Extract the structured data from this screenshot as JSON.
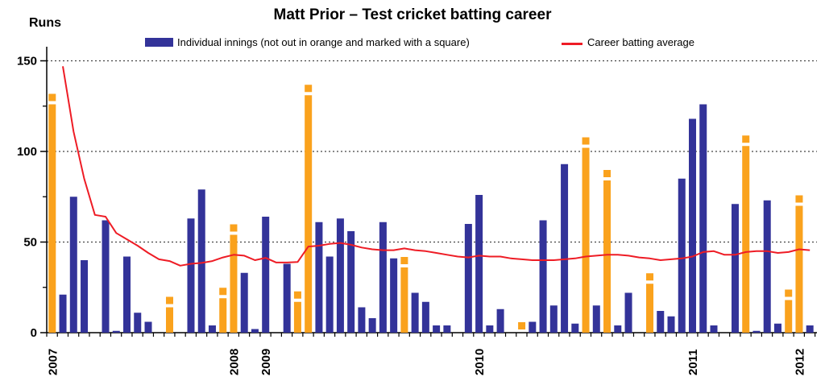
{
  "title": "Matt Prior – Test cricket batting career",
  "y_axis_title": "Runs",
  "legend": {
    "innings_label": "Individual innings (not out in orange and marked with a square)",
    "average_label": "Career batting average"
  },
  "colors": {
    "bar_blue": "#333399",
    "bar_orange": "#FAA21D",
    "line_red": "#EE1C25",
    "grid": "#444444",
    "axis": "#000000",
    "text": "#000000",
    "background": "#ffffff"
  },
  "chart_data": {
    "type": "bar",
    "title": "Matt Prior – Test cricket batting career",
    "xlabel": "",
    "ylabel": "Runs",
    "ylim": [
      0,
      160
    ],
    "grid": "horizontal dotted at 50/100/150",
    "legend_position": "top",
    "y_tick_labels": [
      "0",
      "50",
      "100",
      "150"
    ],
    "y_tick_values": [
      0,
      50,
      100,
      150
    ],
    "y_minor_tick_values": [
      25,
      75,
      125
    ],
    "gridline_values": [
      50,
      100,
      150
    ],
    "x_axis_note": "one slot per Test innings in chronological order; zero scores show no bar",
    "series": [
      {
        "name": "Individual innings",
        "type": "bar",
        "runs": [
          126,
          21,
          75,
          40,
          0,
          62,
          1,
          42,
          11,
          6,
          0,
          14,
          0,
          63,
          79,
          4,
          19,
          54,
          33,
          2,
          64,
          0,
          38,
          17,
          131,
          61,
          42,
          63,
          56,
          14,
          8,
          61,
          41,
          36,
          22,
          17,
          4,
          4,
          0,
          60,
          76,
          4,
          13,
          0,
          0,
          6,
          62,
          15,
          93,
          5,
          102,
          15,
          84,
          4,
          22,
          0,
          27,
          12,
          9,
          85,
          118,
          126,
          4,
          0,
          71,
          103,
          1,
          73,
          5,
          18,
          70,
          4
        ],
        "not_out_innings_1based": [
          1,
          12,
          17,
          18,
          24,
          25,
          34,
          45,
          51,
          53,
          57,
          66,
          70,
          71
        ],
        "not_out_note": "not out innings drawn in orange with a small square marker above the bar"
      },
      {
        "name": "Career batting average",
        "type": "line",
        "values": [
          null,
          147,
          111,
          85,
          65,
          64,
          55,
          51.5,
          48,
          44,
          40.5,
          39.5,
          37,
          38,
          38.5,
          39.5,
          41.5,
          43,
          42.5,
          40,
          41.3,
          38.7,
          38.7,
          39,
          47.5,
          48,
          49,
          49.5,
          48.5,
          47,
          46,
          45.5,
          45.5,
          46.5,
          45.5,
          45,
          44,
          43,
          42,
          41.5,
          42.5,
          42,
          42,
          41,
          40.5,
          40,
          40,
          40,
          40.5,
          41,
          42,
          42.5,
          43,
          43,
          42.5,
          41.5,
          41,
          40,
          40.5,
          41,
          42,
          44.5,
          45,
          43,
          43,
          44.5,
          45,
          45,
          44,
          44.5,
          46,
          45.5
        ]
      }
    ],
    "year_tick_labels": [
      {
        "label": "2007",
        "innings_1based": 1
      },
      {
        "label": "2008",
        "innings_1based": 18
      },
      {
        "label": "2009",
        "innings_1based": 21
      },
      {
        "label": "2010",
        "innings_1based": 41
      },
      {
        "label": "2011",
        "innings_1based": 61
      },
      {
        "label": "2012",
        "innings_1based": 71
      }
    ]
  }
}
